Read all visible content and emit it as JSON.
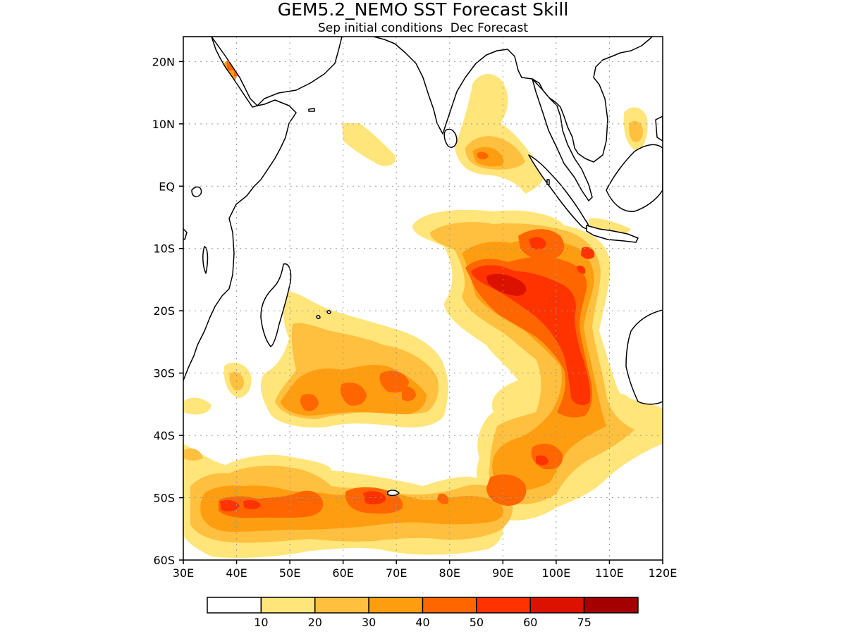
{
  "title": "GEM5.2_NEMO SST Forecast Skill",
  "subtitle": "Sep initial conditions  Dec Forecast",
  "map": {
    "lon_range": [
      30,
      120
    ],
    "lat_range": [
      -60,
      24
    ],
    "lat_ticks": [
      {
        "value": 20,
        "label": "20N"
      },
      {
        "value": 10,
        "label": "10N"
      },
      {
        "value": 0,
        "label": "EQ"
      },
      {
        "value": -10,
        "label": "10S"
      },
      {
        "value": -20,
        "label": "20S"
      },
      {
        "value": -30,
        "label": "30S"
      },
      {
        "value": -40,
        "label": "40S"
      },
      {
        "value": -50,
        "label": "50S"
      },
      {
        "value": -60,
        "label": "60S"
      }
    ],
    "lon_ticks": [
      {
        "value": 30,
        "label": "30E"
      },
      {
        "value": 40,
        "label": "40E"
      },
      {
        "value": 50,
        "label": "50E"
      },
      {
        "value": 60,
        "label": "60E"
      },
      {
        "value": 70,
        "label": "70E"
      },
      {
        "value": 80,
        "label": "80E"
      },
      {
        "value": 90,
        "label": "90E"
      },
      {
        "value": 100,
        "label": "100E"
      },
      {
        "value": 110,
        "label": "110E"
      },
      {
        "value": 120,
        "label": "120E"
      }
    ],
    "grid": "dotted"
  },
  "colorbar": {
    "bins": [
      "#ffffff",
      "#ffe57a",
      "#ffbf3f",
      "#ff9d11",
      "#ff6600",
      "#ff3300",
      "#dd1100",
      "#a50000"
    ],
    "labels": [
      "10",
      "20",
      "30",
      "40",
      "50",
      "60",
      "75"
    ]
  },
  "skill_levels": [
    {
      "min": 10,
      "color": "#ffe57a"
    },
    {
      "min": 20,
      "color": "#ffbf3f"
    },
    {
      "min": 30,
      "color": "#ff9d11"
    },
    {
      "min": 40,
      "color": "#ff6600"
    },
    {
      "min": 50,
      "color": "#ff3300"
    },
    {
      "min": 60,
      "color": "#dd1100"
    },
    {
      "min": 75,
      "color": "#a50000"
    }
  ],
  "colors": {
    "coastline": "#000000",
    "frame": "#000000",
    "grid": "#999999"
  }
}
